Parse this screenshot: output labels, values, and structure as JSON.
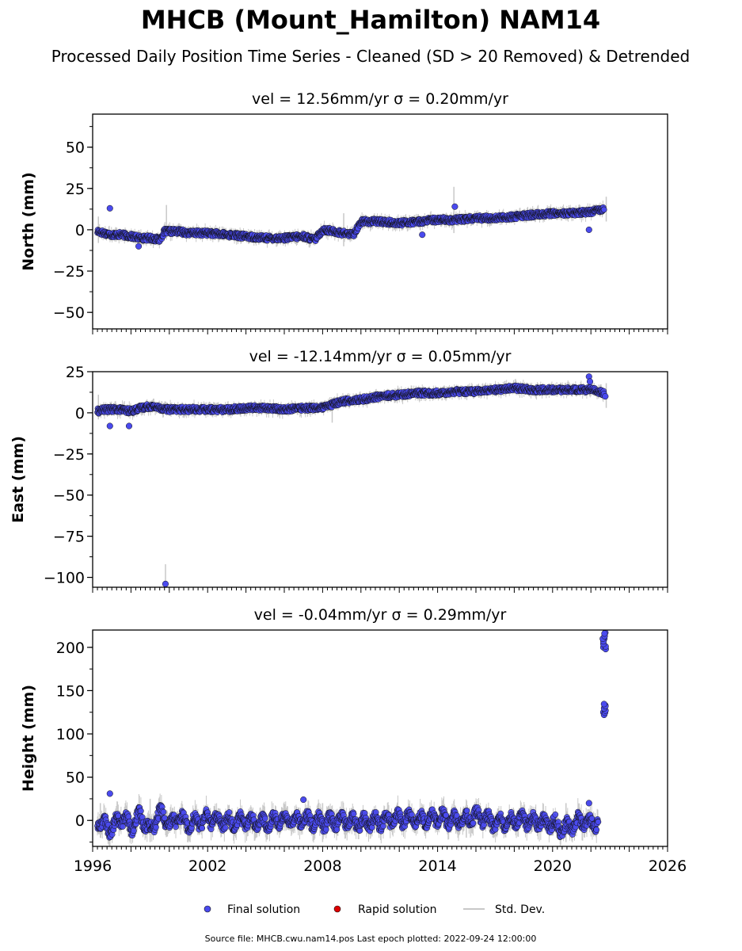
{
  "title": "MHCB (Mount_Hamilton) NAM14",
  "subtitle": "Processed Daily Position Time Series - Cleaned (SD > 20 Removed) & Detrended",
  "legend": {
    "final": "Final solution",
    "rapid": "Rapid solution",
    "std": "Std. Dev."
  },
  "footer": "Source file: MHCB.cwu.nam14.pos  Last epoch plotted: 2022-09-24 12:00:00",
  "colors": {
    "final": "#4a4aee",
    "final_edge": "#111111",
    "rapid": "#dd0000",
    "std": "#c8c8c8"
  },
  "chart_data": [
    {
      "type": "scatter",
      "title": "vel = 12.56mm/yr   σ = 0.20mm/yr",
      "ylabel": "North (mm)",
      "xlim": [
        1996,
        2026
      ],
      "ylim": [
        -60,
        70
      ],
      "yticks": [
        "50",
        "25",
        "0",
        "−25",
        "−50"
      ],
      "ytick_values": [
        50,
        25,
        0,
        -25,
        -50
      ],
      "x": [
        1996.25,
        1996.6,
        1997.0,
        1997.5,
        1998.0,
        1998.5,
        1999.0,
        1999.5,
        1999.75,
        2000.5,
        2001.0,
        2002.0,
        2003.0,
        2004.0,
        2005.0,
        2006.0,
        2007.0,
        2007.6,
        2008.0,
        2008.6,
        2009.0,
        2009.6,
        2010.0,
        2011.0,
        2012.0,
        2013.0,
        2014.0,
        2015.0,
        2016.0,
        2017.0,
        2018.0,
        2019.0,
        2020.0,
        2021.0,
        2022.0,
        2022.7
      ],
      "y": [
        -1,
        -2,
        -3,
        -3,
        -4,
        -5,
        -5,
        -6,
        -1,
        -1,
        -2,
        -2,
        -3,
        -4,
        -5,
        -5,
        -4,
        -6,
        0,
        -1,
        -2,
        -3,
        5,
        5,
        4,
        5,
        6,
        6,
        7,
        7,
        8,
        9,
        10,
        10,
        11,
        13
      ],
      "outliers": {
        "x": [
          1996.9,
          2014.9,
          2021.9,
          2013.2,
          1998.4
        ],
        "y": [
          13,
          14,
          0,
          -3,
          -10
        ]
      },
      "std_spikes": {
        "x": [
          1996.3,
          1999.85,
          2009.1,
          2014.85,
          2022.8
        ],
        "y_low": [
          -8,
          -6,
          -10,
          -2,
          5
        ],
        "y_high": [
          8,
          15,
          10,
          26,
          20
        ]
      }
    },
    {
      "type": "scatter",
      "title": "vel = -12.14mm/yr   σ = 0.05mm/yr",
      "ylabel": "East (mm)",
      "xlim": [
        1996,
        2026
      ],
      "ylim": [
        -106,
        25
      ],
      "yticks": [
        "25",
        "0",
        "−25",
        "−50",
        "−75",
        "−100"
      ],
      "ytick_values": [
        25,
        0,
        -25,
        -50,
        -75,
        -100
      ],
      "x": [
        1996.25,
        1996.6,
        1997.0,
        1997.5,
        1998.0,
        1998.5,
        1999.0,
        1999.5,
        2000.0,
        2001.0,
        2002.0,
        2003.0,
        2004.0,
        2005.0,
        2006.0,
        2007.0,
        2008.0,
        2008.5,
        2009.0,
        2010.0,
        2011.0,
        2012.0,
        2013.0,
        2014.0,
        2015.0,
        2016.0,
        2017.0,
        2018.0,
        2019.0,
        2020.0,
        2021.0,
        2022.0,
        2022.7
      ],
      "y": [
        1,
        2,
        2,
        2,
        1,
        3,
        4,
        3,
        2,
        2,
        2,
        2,
        3,
        3,
        2,
        3,
        3,
        5,
        7,
        8,
        10,
        11,
        12,
        12,
        13,
        13,
        14,
        15,
        14,
        14,
        14,
        14,
        12
      ],
      "outliers": {
        "x": [
          1999.8,
          2021.9,
          2021.95,
          1996.9,
          1997.9,
          2022.75
        ],
        "y": [
          -104,
          22,
          19,
          -8,
          -8,
          10
        ]
      },
      "std_spikes": {
        "x": [
          1996.3,
          1999.8,
          2008.5,
          2022.8
        ],
        "y_low": [
          -4,
          -104,
          -6,
          3
        ],
        "y_high": [
          11,
          -92,
          8,
          18
        ]
      }
    },
    {
      "type": "scatter",
      "title": "vel = -0.04mm/yr   σ = 0.29mm/yr",
      "ylabel": "Height (mm)",
      "xlim": [
        1996,
        2026
      ],
      "ylim": [
        -30,
        220
      ],
      "yticks": [
        "200",
        "150",
        "100",
        "50",
        "0"
      ],
      "ytick_values": [
        200,
        150,
        100,
        50,
        0
      ],
      "xtick_values": [
        1996,
        2002,
        2008,
        2014,
        2020,
        2026
      ],
      "xticks": [
        "1996",
        "2002",
        "2008",
        "2014",
        "2020",
        "2026"
      ],
      "x": [
        1996.25,
        1996.6,
        1997.0,
        1997.5,
        1998.0,
        1998.5,
        1999.0,
        1999.5,
        2000.0,
        2000.5,
        2001.0,
        2002.0,
        2003.0,
        2004.0,
        2005.0,
        2006.0,
        2007.0,
        2008.0,
        2009.0,
        2010.0,
        2011.0,
        2012.0,
        2013.0,
        2014.0,
        2015.0,
        2016.0,
        2017.0,
        2018.0,
        2019.0,
        2020.0,
        2020.5,
        2021.0,
        2021.5,
        2022.0,
        2022.4
      ],
      "y": [
        0,
        -5,
        -10,
        5,
        -8,
        6,
        -12,
        10,
        -6,
        4,
        -4,
        2,
        -2,
        0,
        -3,
        2,
        0,
        -2,
        0,
        -3,
        -1,
        2,
        1,
        3,
        0,
        5,
        -2,
        1,
        0,
        -3,
        -10,
        -6,
        0,
        -3,
        -2
      ],
      "outliers": {
        "x": [
          2022.65,
          2022.7,
          2022.75,
          2022.65,
          2022.7,
          2022.75,
          1996.9,
          2007.0,
          2021.9
        ],
        "y": [
          125,
          130,
          133,
          200,
          210,
          217,
          31,
          24,
          20
        ]
      },
      "std_spikes": {
        "x": [
          1996.4,
          1999.0,
          2008.0,
          2015.5,
          2020.7
        ],
        "y_low": [
          -20,
          -25,
          -25,
          -20,
          -25
        ],
        "y_high": [
          20,
          25,
          20,
          18,
          20
        ]
      }
    }
  ]
}
